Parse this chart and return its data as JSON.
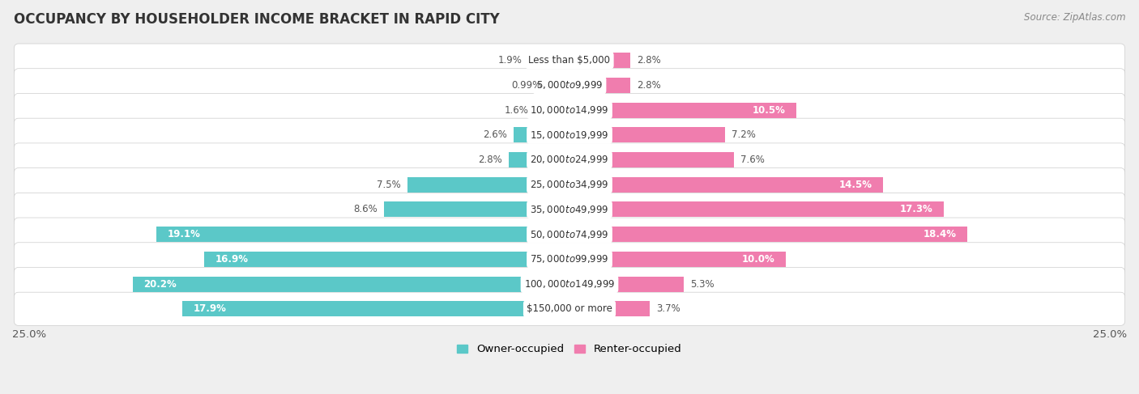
{
  "title": "OCCUPANCY BY HOUSEHOLDER INCOME BRACKET IN RAPID CITY",
  "source": "Source: ZipAtlas.com",
  "categories": [
    "Less than $5,000",
    "$5,000 to $9,999",
    "$10,000 to $14,999",
    "$15,000 to $19,999",
    "$20,000 to $24,999",
    "$25,000 to $34,999",
    "$35,000 to $49,999",
    "$50,000 to $74,999",
    "$75,000 to $99,999",
    "$100,000 to $149,999",
    "$150,000 or more"
  ],
  "owner_values": [
    1.9,
    0.99,
    1.6,
    2.6,
    2.8,
    7.5,
    8.6,
    19.1,
    16.9,
    20.2,
    17.9
  ],
  "renter_values": [
    2.8,
    2.8,
    10.5,
    7.2,
    7.6,
    14.5,
    17.3,
    18.4,
    10.0,
    5.3,
    3.7
  ],
  "owner_color": "#5BC8C8",
  "renter_color": "#F07DAE",
  "owner_label": "Owner-occupied",
  "renter_label": "Renter-occupied",
  "xlim": 25.0,
  "background_color": "#efefef",
  "bar_background": "#ffffff",
  "title_fontsize": 12,
  "source_fontsize": 8.5,
  "label_fontsize": 8.5,
  "value_fontsize": 8.5,
  "axis_label_fontsize": 9.5
}
